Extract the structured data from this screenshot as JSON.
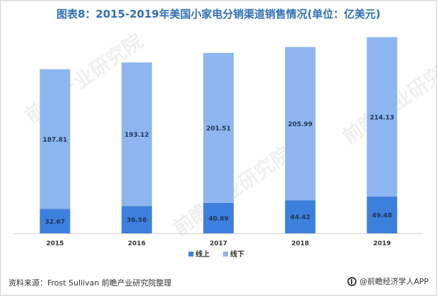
{
  "title": "图表8：2015-2019年美国小家电分销渠道销售情况(单位：亿美元)",
  "source": "资料来源：Frost Sullivan 前瞻产业研究院整理",
  "brand": "@前瞻经济学人APP",
  "watermark": "前瞻产业研究院",
  "colors": {
    "online": "#3d7fdc",
    "offline": "#8db5ef",
    "title": "#2f6fb3"
  },
  "chart_data": {
    "type": "bar",
    "stacked": true,
    "title": "图表8：2015-2019年美国小家电分销渠道销售情况(单位：亿美元)",
    "categories": [
      "2015",
      "2016",
      "2017",
      "2018",
      "2019"
    ],
    "series": [
      {
        "name": "线上",
        "values": [
          32.67,
          36.56,
          40.89,
          44.42,
          49.48
        ]
      },
      {
        "name": "线下",
        "values": [
          187.81,
          193.12,
          201.51,
          205.99,
          214.13
        ]
      }
    ],
    "xlabel": "",
    "ylabel": "",
    "ylim": [
      0,
      270
    ],
    "legend_position": "bottom-center",
    "grid": false
  }
}
